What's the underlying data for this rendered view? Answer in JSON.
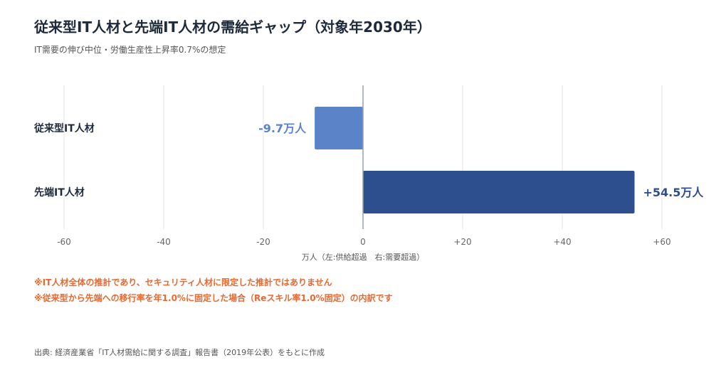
{
  "title": "従来型IT人材と先端IT人材の需給ギャップ（対象年2030年）",
  "subtitle": "IT需要の伸び中位・労働生産性上昇率0.7%の想定",
  "chart_data": {
    "type": "bar",
    "orientation": "horizontal",
    "categories": [
      "従来型IT人材",
      "先端IT人材"
    ],
    "values": [
      -9.7,
      54.5
    ],
    "value_labels": [
      "-9.7万人",
      "+54.5万人"
    ],
    "bar_colors": [
      "#5b84c8",
      "#2d4f8e"
    ],
    "label_colors": [
      "#5b84c8",
      "#2d4f8e"
    ],
    "xlabel": "万人（左:供給超過　右:需要超過）",
    "xlim": [
      -60,
      60
    ],
    "xticks": [
      -60,
      -40,
      -20,
      0,
      20,
      40,
      60
    ],
    "xtick_labels": [
      "-60",
      "-40",
      "-20",
      "0",
      "+20",
      "+40",
      "+60"
    ],
    "grid": true
  },
  "notes": [
    "※IT人材全体の推計であり、セキュリティ人材に限定した推計ではありません",
    "※従来型から先端への移行率を年1.0%に固定した場合（Reスキル率1.0%固定）の内訳です"
  ],
  "source": "出典: 経済産業省「IT人材需給に関する調査」報告書（2019年公表）をもとに作成",
  "colors": {
    "note": "#e8682f",
    "grid": "#e6e6e6",
    "zero_line": "#9aa0a8",
    "tick": "#666666"
  }
}
